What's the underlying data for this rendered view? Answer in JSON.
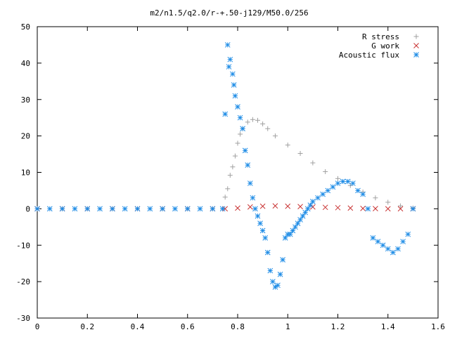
{
  "chart_data": {
    "type": "scatter",
    "title": "m2/n1.5/q2.0/r-+.50-j129/M50.0/256",
    "xlabel": "",
    "ylabel": "",
    "xlim": [
      0,
      1.6
    ],
    "ylim": [
      -30,
      50
    ],
    "xticks": [
      0,
      0.2,
      0.4,
      0.6,
      0.8,
      1,
      1.2,
      1.4,
      1.6
    ],
    "xtick_labels": [
      "0",
      "0.2",
      "0.4",
      "0.6",
      "0.8",
      "1",
      "1.2",
      "1.4",
      "1.6"
    ],
    "yticks": [
      -30,
      -20,
      -10,
      0,
      10,
      20,
      30,
      40,
      50
    ],
    "ytick_labels": [
      "-30",
      "-20",
      "-10",
      "0",
      "10",
      "20",
      "30",
      "40",
      "50"
    ],
    "grid": false,
    "legend_position": "top-right",
    "series": [
      {
        "name": "R stress",
        "marker": "plus",
        "color": "#a0a0a0",
        "x": [
          0.0,
          0.1,
          0.2,
          0.3,
          0.4,
          0.5,
          0.6,
          0.7,
          0.74,
          0.75,
          0.76,
          0.77,
          0.78,
          0.79,
          0.8,
          0.81,
          0.82,
          0.84,
          0.86,
          0.88,
          0.9,
          0.92,
          0.95,
          1.0,
          1.05,
          1.1,
          1.15,
          1.2,
          1.25,
          1.3,
          1.35,
          1.4,
          1.45,
          1.5
        ],
        "y": [
          0,
          0,
          0,
          0,
          0,
          0,
          0,
          0,
          0,
          3.2,
          5.5,
          9.2,
          11.5,
          14.5,
          18.0,
          20.5,
          22.0,
          23.8,
          24.5,
          24.3,
          23.3,
          22.0,
          20.0,
          17.5,
          15.2,
          12.6,
          10.2,
          8.3,
          6.4,
          4.6,
          3.0,
          1.8,
          0.8,
          0.2
        ]
      },
      {
        "name": "G work",
        "marker": "cross",
        "color": "#c83232",
        "x": [
          0.0,
          0.1,
          0.2,
          0.3,
          0.4,
          0.5,
          0.6,
          0.7,
          0.75,
          0.8,
          0.85,
          0.9,
          0.95,
          1.0,
          1.05,
          1.1,
          1.15,
          1.2,
          1.25,
          1.3,
          1.35,
          1.4,
          1.45,
          1.5
        ],
        "y": [
          0,
          0,
          0,
          0,
          0,
          0,
          0,
          0,
          0,
          0.2,
          0.5,
          0.7,
          0.8,
          0.7,
          0.6,
          0.5,
          0.4,
          0.3,
          0.2,
          0.1,
          0.05,
          0.0,
          0.0,
          0.0
        ]
      },
      {
        "name": "Acoustic flux",
        "marker": "star",
        "color": "#1e8ce6",
        "x": [
          0.0,
          0.05,
          0.1,
          0.15,
          0.2,
          0.25,
          0.3,
          0.35,
          0.4,
          0.45,
          0.5,
          0.55,
          0.6,
          0.65,
          0.7,
          0.74,
          0.75,
          0.76,
          0.765,
          0.77,
          0.78,
          0.785,
          0.79,
          0.8,
          0.81,
          0.82,
          0.83,
          0.84,
          0.85,
          0.86,
          0.87,
          0.88,
          0.89,
          0.9,
          0.91,
          0.92,
          0.93,
          0.94,
          0.95,
          0.96,
          0.97,
          0.98,
          0.99,
          1.0,
          1.01,
          1.02,
          1.03,
          1.04,
          1.05,
          1.06,
          1.07,
          1.08,
          1.09,
          1.1,
          1.12,
          1.14,
          1.16,
          1.18,
          1.2,
          1.22,
          1.24,
          1.26,
          1.28,
          1.3,
          1.32,
          1.34,
          1.36,
          1.38,
          1.4,
          1.42,
          1.44,
          1.46,
          1.48,
          1.5
        ],
        "y": [
          0,
          0,
          0,
          0,
          0,
          0,
          0,
          0,
          0,
          0,
          0,
          0,
          0,
          0,
          0,
          0,
          26,
          45,
          39,
          41,
          37,
          34,
          31,
          28,
          25,
          22,
          16,
          12,
          7,
          3,
          0,
          -2,
          -4,
          -6,
          -8,
          -12,
          -17,
          -20,
          -21.5,
          -21,
          -18,
          -14,
          -8,
          -7,
          -7,
          -6,
          -5,
          -4,
          -3,
          -2,
          -1,
          0,
          1,
          2,
          3,
          4,
          5,
          6,
          7,
          7.5,
          7.5,
          7,
          5,
          4,
          0,
          -8,
          -9,
          -10,
          -11,
          -12,
          -11,
          -9,
          -7,
          0
        ]
      }
    ]
  }
}
